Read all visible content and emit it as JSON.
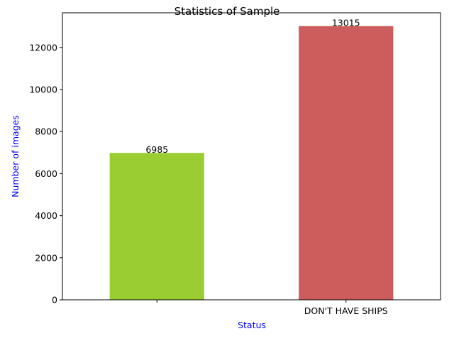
{
  "chart_data": {
    "type": "bar",
    "title": "Statistics of Sample",
    "xlabel": "Status",
    "ylabel": "Number of images",
    "axis_label_color": "#0000ff",
    "categories": [
      "",
      "DON'T HAVE SHIPS"
    ],
    "values": [
      6985,
      13015
    ],
    "data_labels": [
      "6985",
      "13015"
    ],
    "bar_colors": [
      "#9acd32",
      "#cd5c5c"
    ],
    "ylim": [
      0,
      13650
    ],
    "yticks": [
      0,
      2000,
      4000,
      6000,
      8000,
      10000,
      12000
    ],
    "ytick_labels": [
      "0",
      "2000",
      "4000",
      "6000",
      "8000",
      "10000",
      "12000"
    ],
    "grid": false,
    "legend": "none"
  }
}
